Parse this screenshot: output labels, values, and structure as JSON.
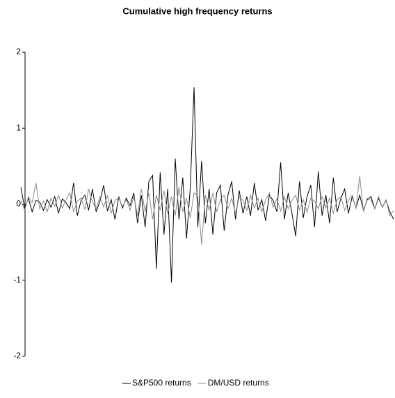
{
  "chart_data": {
    "type": "line",
    "title": "Cumulative high frequency returns",
    "ylim": [
      -2,
      2
    ],
    "yticks": [
      -2,
      -1,
      0,
      1,
      2
    ],
    "grid": false,
    "legend": "bottom",
    "series": [
      {
        "name": "S&P500 returns",
        "color": "#000000",
        "values": [
          0.22,
          -0.05,
          0.08,
          -0.1,
          0.05,
          0.03,
          -0.08,
          0.06,
          -0.04,
          0.1,
          -0.12,
          0.07,
          0.02,
          -0.06,
          0.28,
          -0.15,
          0.05,
          0.12,
          -0.08,
          0.2,
          -0.1,
          0.04,
          0.25,
          -0.09,
          0.06,
          -0.2,
          0.1,
          -0.05,
          0.08,
          -0.02,
          0.15,
          -0.25,
          0.12,
          -0.3,
          0.3,
          0.38,
          -0.85,
          0.42,
          -0.4,
          0.2,
          -1.03,
          0.6,
          -0.2,
          0.35,
          -0.45,
          0.22,
          1.54,
          -0.3,
          0.57,
          -0.25,
          0.2,
          -0.4,
          0.15,
          0.25,
          -0.35,
          0.12,
          0.3,
          -0.2,
          0.18,
          -0.12,
          0.1,
          -0.15,
          0.28,
          -0.08,
          0.06,
          -0.22,
          0.12,
          0.05,
          -0.1,
          0.55,
          -0.2,
          0.15,
          -0.12,
          -0.42,
          0.3,
          -0.18,
          0.1,
          0.25,
          -0.3,
          0.43,
          -0.15,
          0.12,
          -0.25,
          0.35,
          -0.1,
          0.08,
          0.2,
          -0.12,
          0.1,
          -0.05,
          0.12,
          -0.08,
          0.06,
          0.1,
          -0.06,
          0.08,
          -0.04,
          0.05,
          -0.1,
          -0.2
        ]
      },
      {
        "name": "DM/USD returns",
        "color": "#8c8c8c",
        "values": [
          0.05,
          -0.08,
          0.1,
          0.02,
          0.28,
          -0.06,
          0.04,
          -0.1,
          0.08,
          -0.03,
          0.12,
          -0.05,
          0.06,
          0.15,
          -0.1,
          0.04,
          0.08,
          -0.07,
          0.2,
          0.03,
          -0.06,
          0.1,
          -0.04,
          0.12,
          -0.12,
          0.05,
          0.08,
          -0.03,
          0.06,
          -0.08,
          0.1,
          -0.15,
          0.2,
          -0.1,
          0.15,
          -0.2,
          0.12,
          -0.08,
          0.18,
          -0.12,
          0.1,
          -0.15,
          0.22,
          -0.1,
          0.08,
          -0.18,
          0.15,
          0.1,
          -0.53,
          0.12,
          -0.08,
          0.15,
          -0.1,
          0.06,
          0.12,
          -0.06,
          0.08,
          -0.12,
          0.1,
          0.05,
          -0.08,
          0.12,
          -0.05,
          0.08,
          -0.1,
          0.06,
          0.15,
          -0.04,
          0.07,
          -0.09,
          0.1,
          -0.06,
          0.05,
          0.12,
          -0.08,
          0.06,
          -0.1,
          0.08,
          0.04,
          -0.06,
          0.1,
          -0.05,
          0.08,
          -0.12,
          0.06,
          0.1,
          -0.08,
          0.05,
          0.12,
          -0.06,
          0.37,
          -0.1,
          0.08,
          0.05,
          -0.06,
          0.1,
          -0.04,
          0.06,
          -0.15,
          -0.08
        ]
      }
    ]
  }
}
